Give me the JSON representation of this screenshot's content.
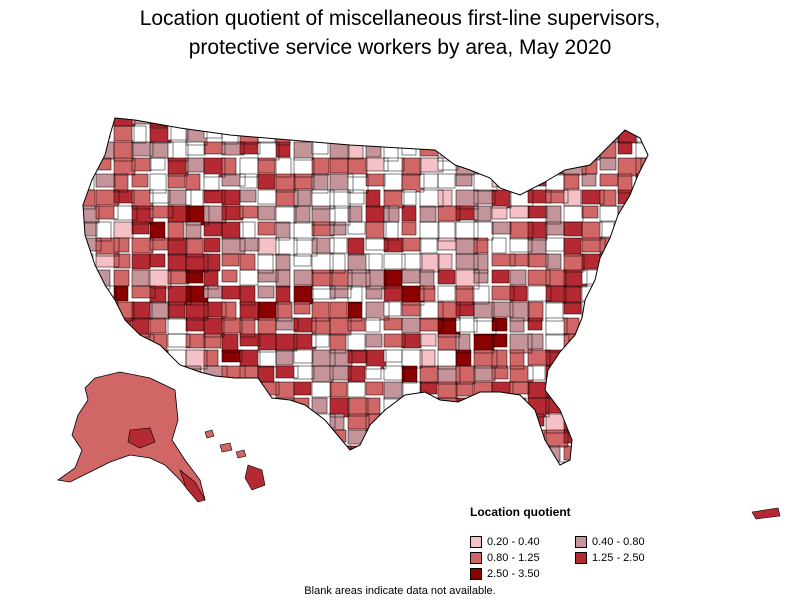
{
  "title_line1": "Location quotient of miscellaneous first-line supervisors,",
  "title_line2": "protective service workers by area, May 2020",
  "legend": {
    "title": "Location quotient",
    "items": [
      {
        "label": "0.20 - 0.40",
        "color": "#f5c1c6"
      },
      {
        "label": "0.40 - 0.80",
        "color": "#c4949a"
      },
      {
        "label": "0.80 - 1.25",
        "color": "#d06666"
      },
      {
        "label": "1.25 - 2.50",
        "color": "#b52a32"
      },
      {
        "label": "2.50 - 3.50",
        "color": "#8b0000"
      }
    ]
  },
  "footnote": "Blank areas indicate data not available.",
  "colors": {
    "none": "#ffffff",
    "border": "#000000",
    "state_border": "#000000"
  }
}
